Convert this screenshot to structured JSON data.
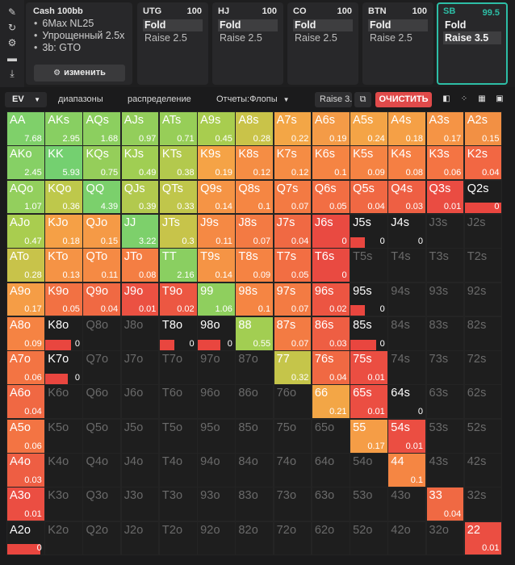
{
  "left_icons": [
    "pin-icon",
    "reset-icon",
    "settings-icon",
    "gamepad-icon",
    "import-icon"
  ],
  "cash": {
    "title": "Cash 100bb",
    "options": [
      "6Max NL25",
      "Упрощенный 2.5x",
      "3b: GTO"
    ],
    "edit_label": "изменить"
  },
  "positions": [
    {
      "name": "UTG",
      "stack": "100",
      "fold": "Fold",
      "raise": "Raise 2.5"
    },
    {
      "name": "HJ",
      "stack": "100",
      "fold": "Fold",
      "raise": "Raise 2.5"
    },
    {
      "name": "CO",
      "stack": "100",
      "fold": "Fold",
      "raise": "Raise 2.5"
    },
    {
      "name": "BTN",
      "stack": "100",
      "fold": "Fold",
      "raise": "Raise 2.5"
    },
    {
      "name": "SB",
      "stack": "99.5",
      "fold": "Fold",
      "raise": "Raise 3.5",
      "active": true
    }
  ],
  "toolbar": {
    "ev": "EV",
    "ranges": "диапазоны",
    "distribution": "распределение",
    "reports": "Отчеты:Флопы",
    "raise": "Raise 3.5",
    "clear": "ОЧИСТИТЬ"
  },
  "colors": {
    "accent": "#2dbea6",
    "clear": "#e04a4a",
    "bar_red": "#e9463f",
    "empty": "#1e1e1e"
  },
  "grid": {
    "ranks": [
      "A",
      "K",
      "Q",
      "J",
      "T",
      "9",
      "8",
      "7",
      "6",
      "5",
      "4",
      "3",
      "2"
    ],
    "rows": [
      [
        [
          "AA",
          "7.68",
          "#7fd06a"
        ],
        [
          "AKs",
          "2.95",
          "#88cf62"
        ],
        [
          "AQs",
          "1.68",
          "#8ccf5f"
        ],
        [
          "AJs",
          "0.97",
          "#93ce5b"
        ],
        [
          "ATs",
          "0.71",
          "#97ce58"
        ],
        [
          "A9s",
          "0.45",
          "#a8cd4f"
        ],
        [
          "A8s",
          "0.28",
          "#c9c349"
        ],
        [
          "A7s",
          "0.22",
          "#f3a646"
        ],
        [
          "A6s",
          "0.19",
          "#f49b47"
        ],
        [
          "A5s",
          "0.24",
          "#f4a446"
        ],
        [
          "A4s",
          "0.18",
          "#f5a046"
        ],
        [
          "A3s",
          "0.17",
          "#f59445"
        ],
        [
          "A2s",
          "0.15",
          "#f29044"
        ]
      ],
      [
        [
          "AKo",
          "2.45",
          "#86d065"
        ],
        [
          "KK",
          "5.93",
          "#74d070"
        ],
        [
          "KQs",
          "0.75",
          "#95ce5a"
        ],
        [
          "KJs",
          "0.49",
          "#a0ce53"
        ],
        [
          "KTs",
          "0.38",
          "#b3c94d"
        ],
        [
          "K9s",
          "0.19",
          "#f5a346"
        ],
        [
          "K8s",
          "0.12",
          "#f58d44"
        ],
        [
          "K7s",
          "0.12",
          "#f58c44"
        ],
        [
          "K6s",
          "0.1",
          "#f58443"
        ],
        [
          "K5s",
          "0.09",
          "#f58343"
        ],
        [
          "K4s",
          "0.08",
          "#f57f43"
        ],
        [
          "K3s",
          "0.06",
          "#f47443"
        ],
        [
          "K2s",
          "0.04",
          "#f26743"
        ]
      ],
      [
        [
          "AQo",
          "1.07",
          "#93cf5d"
        ],
        [
          "KQo",
          "0.36",
          "#bec84b"
        ],
        [
          "QQ",
          "4.39",
          "#7bd06c"
        ],
        [
          "QJs",
          "0.39",
          "#b2c94e"
        ],
        [
          "QTs",
          "0.33",
          "#c0c64b"
        ],
        [
          "Q9s",
          "0.14",
          "#f59445"
        ],
        [
          "Q8s",
          "0.1",
          "#f58643"
        ],
        [
          "Q7s",
          "0.07",
          "#f37a43"
        ],
        [
          "Q6s",
          "0.05",
          "#f26e43"
        ],
        [
          "Q5s",
          "0.04",
          "#f06843"
        ],
        [
          "Q4s",
          "0.03",
          "#ee5f43"
        ],
        [
          "Q3s",
          "0.01",
          "#ea4c42"
        ],
        [
          "Q2s",
          "0",
          null,
          1.0
        ]
      ],
      [
        [
          "AJo",
          "0.47",
          "#a9cd4f"
        ],
        [
          "KJo",
          "0.18",
          "#f5a046"
        ],
        [
          "QJo",
          "0.15",
          "#f59a46"
        ],
        [
          "JJ",
          "3.22",
          "#7dd06b"
        ],
        [
          "JTs",
          "0.3",
          "#c7c44a"
        ],
        [
          "J9s",
          "0.11",
          "#f58944"
        ],
        [
          "J8s",
          "0.07",
          "#f37a43"
        ],
        [
          "J7s",
          "0.04",
          "#f06943"
        ],
        [
          "J6s",
          "0",
          null,
          "#e94a41"
        ],
        [
          "J5s",
          "0",
          null,
          0.4
        ],
        [
          "J4s",
          "0",
          null,
          0
        ],
        [
          "J3s",
          "",
          null
        ],
        [
          "J2s",
          "",
          null
        ]
      ],
      [
        [
          "ATo",
          "0.28",
          "#c8c34a"
        ],
        [
          "KTo",
          "0.13",
          "#f59345"
        ],
        [
          "QTo",
          "0.11",
          "#f58a44"
        ],
        [
          "JTo",
          "0.08",
          "#f47e43"
        ],
        [
          "TT",
          "2.16",
          "#8acf61"
        ],
        [
          "T9s",
          "0.14",
          "#f59445"
        ],
        [
          "T8s",
          "0.09",
          "#f58343"
        ],
        [
          "T7s",
          "0.05",
          "#f26e43"
        ],
        [
          "T6s",
          "0",
          null,
          "#e94a41"
        ],
        [
          "T5s",
          "",
          null
        ],
        [
          "T4s",
          "",
          null
        ],
        [
          "T3s",
          "",
          null
        ],
        [
          "T2s",
          "",
          null
        ]
      ],
      [
        [
          "A9o",
          "0.17",
          "#f59d46"
        ],
        [
          "K9o",
          "0.05",
          "#f27143"
        ],
        [
          "Q9o",
          "0.04",
          "#f06943"
        ],
        [
          "J9o",
          "0.01",
          "#eb5142"
        ],
        [
          "T9o",
          "0.02",
          "#ec5742"
        ],
        [
          "99",
          "1.06",
          "#8fcf5e"
        ],
        [
          "98s",
          "0.1",
          "#f58543"
        ],
        [
          "97s",
          "0.07",
          "#f37b43"
        ],
        [
          "96s",
          "0.02",
          "#ec5542"
        ],
        [
          "95s",
          "0",
          null,
          0.4
        ],
        [
          "94s",
          "",
          null
        ],
        [
          "93s",
          "",
          null
        ],
        [
          "92s",
          "",
          null
        ]
      ],
      [
        [
          "A8o",
          "0.09",
          "#f58343"
        ],
        [
          "K8o",
          "0",
          null,
          0.7
        ],
        [
          "Q8o",
          "",
          null
        ],
        [
          "J8o",
          "",
          null
        ],
        [
          "T8o",
          "0",
          null,
          0.4
        ],
        [
          "98o",
          "0",
          null,
          0.6
        ],
        [
          "88",
          "0.55",
          "#a2ce52"
        ],
        [
          "87s",
          "0.07",
          "#f37b43"
        ],
        [
          "86s",
          "0.03",
          "#ee5e43"
        ],
        [
          "85s",
          "0",
          null,
          0.7
        ],
        [
          "84s",
          "",
          null
        ],
        [
          "83s",
          "",
          null
        ],
        [
          "82s",
          "",
          null
        ]
      ],
      [
        [
          "A7o",
          "0.06",
          "#f37443"
        ],
        [
          "K7o",
          "0",
          null,
          0.6
        ],
        [
          "Q7o",
          "",
          null
        ],
        [
          "J7o",
          "",
          null
        ],
        [
          "T7o",
          "",
          null
        ],
        [
          "97o",
          "",
          null
        ],
        [
          "87o",
          "",
          null
        ],
        [
          "77",
          "0.32",
          "#c5c54a"
        ],
        [
          "76s",
          "0.04",
          "#f06943"
        ],
        [
          "75s",
          "0.01",
          "#eb4e42"
        ],
        [
          "74s",
          "",
          null
        ],
        [
          "73s",
          "",
          null
        ],
        [
          "72s",
          "",
          null
        ]
      ],
      [
        [
          "A6o",
          "0.04",
          "#f06843"
        ],
        [
          "K6o",
          "",
          null
        ],
        [
          "Q6o",
          "",
          null
        ],
        [
          "J6o",
          "",
          null
        ],
        [
          "T6o",
          "",
          null
        ],
        [
          "96o",
          "",
          null
        ],
        [
          "86o",
          "",
          null
        ],
        [
          "76o",
          "",
          null
        ],
        [
          "66",
          "0.21",
          "#f3a646"
        ],
        [
          "65s",
          "0.01",
          "#eb4e42"
        ],
        [
          "64s",
          "0",
          null,
          0
        ],
        [
          "63s",
          "",
          null
        ],
        [
          "62s",
          "",
          null
        ]
      ],
      [
        [
          "A5o",
          "0.06",
          "#f37443"
        ],
        [
          "K5o",
          "",
          null
        ],
        [
          "Q5o",
          "",
          null
        ],
        [
          "J5o",
          "",
          null
        ],
        [
          "T5o",
          "",
          null
        ],
        [
          "95o",
          "",
          null
        ],
        [
          "85o",
          "",
          null
        ],
        [
          "75o",
          "",
          null
        ],
        [
          "65o",
          "",
          null
        ],
        [
          "55",
          "0.17",
          "#f59d46"
        ],
        [
          "54s",
          "0.01",
          "#eb4e42"
        ],
        [
          "53s",
          "",
          null
        ],
        [
          "52s",
          "",
          null
        ]
      ],
      [
        [
          "A4o",
          "0.03",
          "#ee5e43"
        ],
        [
          "K4o",
          "",
          null
        ],
        [
          "Q4o",
          "",
          null
        ],
        [
          "J4o",
          "",
          null
        ],
        [
          "T4o",
          "",
          null
        ],
        [
          "94o",
          "",
          null
        ],
        [
          "84o",
          "",
          null
        ],
        [
          "74o",
          "",
          null
        ],
        [
          "64o",
          "",
          null
        ],
        [
          "54o",
          "",
          null
        ],
        [
          "44",
          "0.1",
          "#f58643"
        ],
        [
          "43s",
          "",
          null
        ],
        [
          "42s",
          "",
          null
        ]
      ],
      [
        [
          "A3o",
          "0.01",
          "#eb4e42"
        ],
        [
          "K3o",
          "",
          null
        ],
        [
          "Q3o",
          "",
          null
        ],
        [
          "J3o",
          "",
          null
        ],
        [
          "T3o",
          "",
          null
        ],
        [
          "93o",
          "",
          null
        ],
        [
          "83o",
          "",
          null
        ],
        [
          "73o",
          "",
          null
        ],
        [
          "63o",
          "",
          null
        ],
        [
          "53o",
          "",
          null
        ],
        [
          "43o",
          "",
          null
        ],
        [
          "33",
          "0.04",
          "#f06943"
        ],
        [
          "32s",
          "",
          null
        ]
      ],
      [
        [
          "A2o",
          "0",
          null,
          0.9
        ],
        [
          "K2o",
          "",
          null
        ],
        [
          "Q2o",
          "",
          null
        ],
        [
          "J2o",
          "",
          null
        ],
        [
          "T2o",
          "",
          null
        ],
        [
          "92o",
          "",
          null
        ],
        [
          "82o",
          "",
          null
        ],
        [
          "72o",
          "",
          null
        ],
        [
          "62o",
          "",
          null
        ],
        [
          "52o",
          "",
          null
        ],
        [
          "42o",
          "",
          null
        ],
        [
          "32o",
          "",
          null
        ],
        [
          "22",
          "0.01",
          "#eb4e42"
        ]
      ]
    ]
  }
}
